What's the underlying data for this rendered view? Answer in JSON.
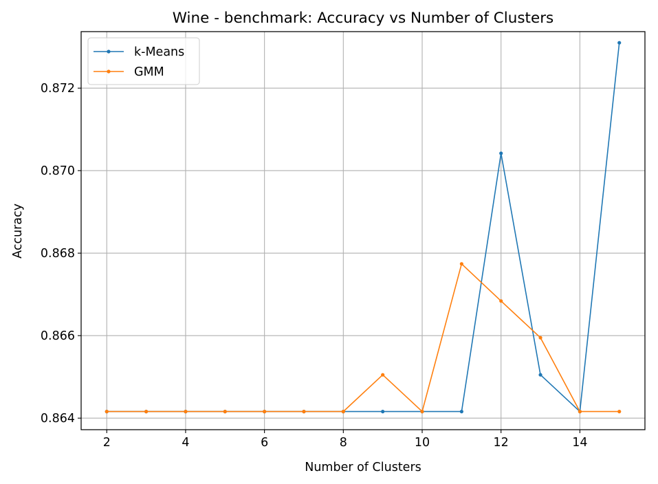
{
  "chart_data": {
    "type": "line",
    "title": "Wine - benchmark: Accuracy vs Number of Clusters",
    "xlabel": "Number of Clusters",
    "ylabel": "Accuracy",
    "x": [
      2,
      3,
      4,
      5,
      6,
      7,
      8,
      9,
      10,
      11,
      12,
      13,
      14,
      15
    ],
    "xlim": [
      1.35,
      15.65
    ],
    "ylim": [
      0.86372,
      0.87337
    ],
    "xticks": [
      2,
      4,
      6,
      8,
      10,
      12,
      14
    ],
    "xtick_labels": [
      "2",
      "4",
      "6",
      "8",
      "10",
      "12",
      "14"
    ],
    "yticks": [
      0.864,
      0.866,
      0.868,
      0.87,
      0.872
    ],
    "ytick_labels": [
      "0.864",
      "0.866",
      "0.868",
      "0.870",
      "0.872"
    ],
    "grid": true,
    "legend_position": "top-left",
    "series": [
      {
        "name": "k-Means",
        "color": "#1f77b4",
        "marker": "dot",
        "values": [
          0.86416,
          0.86416,
          0.86416,
          0.86416,
          0.86416,
          0.86416,
          0.86416,
          0.86416,
          0.86416,
          0.86416,
          0.87042,
          0.86505,
          0.86416,
          0.8731
        ]
      },
      {
        "name": "GMM",
        "color": "#ff7f0e",
        "marker": "dot",
        "values": [
          0.86416,
          0.86416,
          0.86416,
          0.86416,
          0.86416,
          0.86416,
          0.86416,
          0.86505,
          0.86416,
          0.86774,
          0.86684,
          0.86595,
          0.86416,
          0.86416
        ]
      }
    ]
  }
}
